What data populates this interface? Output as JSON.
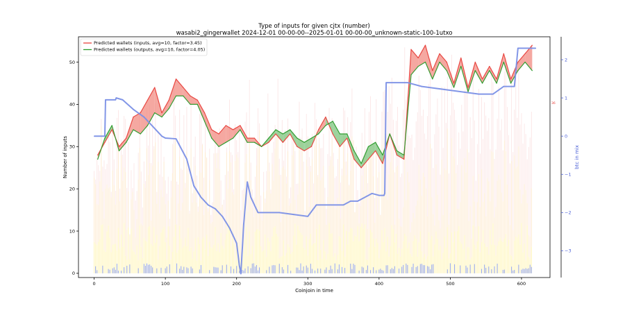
{
  "chart_data": {
    "type": "line",
    "title": "Type of inputs for given cjtx (number)",
    "subtitle": "wasabi2_gingerwallet 2024-12-01 00-00-00--2025-01-01 00-00-00_unknown-static-100-1utxo",
    "xlabel": "Coinjoin in time",
    "ylabel": "Number of inputs",
    "y2label": "btc in mix",
    "xlim": [
      -22,
      640
    ],
    "ylim": [
      -1,
      56
    ],
    "y2lim": [
      -3.7,
      2.6
    ],
    "xticks": [
      "0",
      "100",
      "200",
      "300",
      "400",
      "500",
      "600"
    ],
    "yticks": [
      "0",
      "10",
      "20",
      "30",
      "40",
      "50"
    ],
    "y2ticks": [
      "−3",
      "−2",
      "−1",
      "0",
      "1",
      "2"
    ],
    "legend": {
      "placement": "top-left",
      "entries": [
        {
          "label": "Predicted wallets (inputs, avg=10, factor=3.45)",
          "color": "#e8413c"
        },
        {
          "label": "Predicted wallets (outputs, avg=10, factor=4.05)",
          "color": "#2a9a2a"
        }
      ]
    },
    "right_axis_marker_label": "36",
    "fill_colors": {
      "inputs_greater": "#f28b82",
      "outputs_greater": "#7cc47c"
    },
    "series": [
      {
        "name": "Predicted wallets (inputs, avg=10, factor=3.45)",
        "color": "#e8413c",
        "axis": "left",
        "x": [
          5,
          15,
          25,
          35,
          45,
          55,
          65,
          75,
          85,
          95,
          105,
          115,
          125,
          135,
          145,
          155,
          165,
          175,
          185,
          195,
          205,
          215,
          225,
          235,
          245,
          255,
          265,
          275,
          285,
          295,
          305,
          315,
          325,
          335,
          345,
          355,
          365,
          375,
          385,
          395,
          405,
          415,
          425,
          435,
          445,
          455,
          465,
          475,
          485,
          495,
          505,
          515,
          525,
          535,
          545,
          555,
          565,
          575,
          585,
          595,
          605,
          615
        ],
        "values": [
          28,
          31,
          34,
          30,
          32,
          37,
          38,
          41,
          44,
          38,
          41,
          46,
          44,
          42,
          41,
          38,
          34,
          33,
          35,
          34,
          35,
          32,
          32,
          30,
          31,
          33,
          31,
          33,
          30,
          29,
          30,
          34,
          37,
          33,
          30,
          32,
          27,
          25,
          27,
          29,
          26,
          33,
          28,
          27,
          53,
          51,
          54,
          48,
          52,
          50,
          45,
          51,
          44,
          50,
          46,
          49,
          46,
          52,
          46,
          50,
          52,
          54
        ]
      },
      {
        "name": "Predicted wallets (outputs, avg=10, factor=4.05)",
        "color": "#2a9a2a",
        "axis": "left",
        "x": [
          5,
          15,
          25,
          35,
          45,
          55,
          65,
          75,
          85,
          95,
          105,
          115,
          125,
          135,
          145,
          155,
          165,
          175,
          185,
          195,
          205,
          215,
          225,
          235,
          245,
          255,
          265,
          275,
          285,
          295,
          305,
          315,
          325,
          335,
          345,
          355,
          365,
          375,
          385,
          395,
          405,
          415,
          425,
          435,
          445,
          455,
          465,
          475,
          485,
          495,
          505,
          515,
          525,
          535,
          545,
          555,
          565,
          575,
          585,
          595,
          605,
          615
        ],
        "values": [
          27,
          32,
          35,
          29,
          31,
          34,
          33,
          35,
          38,
          37,
          39,
          42,
          42,
          40,
          40,
          36,
          32,
          30,
          31,
          32,
          34,
          31,
          31,
          30,
          32,
          34,
          33,
          34,
          32,
          31,
          32,
          33,
          35,
          36,
          33,
          33,
          29,
          26,
          30,
          31,
          28,
          33,
          29,
          28,
          47,
          49,
          50,
          46,
          50,
          48,
          44,
          49,
          43,
          48,
          45,
          48,
          45,
          50,
          45,
          48,
          50,
          48
        ]
      },
      {
        "name": "",
        "color": "#7b90e6",
        "axis": "right",
        "x": [
          0,
          15,
          16,
          30,
          31,
          40,
          55,
          70,
          80,
          90,
          95,
          100,
          115,
          130,
          140,
          150,
          160,
          170,
          180,
          190,
          200,
          204,
          206,
          210,
          215,
          220,
          230,
          260,
          280,
          300,
          312,
          350,
          360,
          370,
          390,
          400,
          407,
          408,
          410,
          440,
          460,
          480,
          500,
          520,
          540,
          560,
          575,
          590,
          595,
          620
        ],
        "values": [
          0,
          0,
          0.95,
          0.95,
          1.0,
          0.95,
          0.7,
          0.5,
          0.3,
          0.1,
          0,
          -0.05,
          -0.07,
          -0.6,
          -1.3,
          -1.6,
          -1.8,
          -1.9,
          -2.1,
          -2.4,
          -2.8,
          -3.4,
          -3.6,
          -2.3,
          -1.2,
          -1.6,
          -2.0,
          -2.0,
          -2.05,
          -2.1,
          -1.8,
          -1.8,
          -1.7,
          -1.7,
          -1.5,
          -1.55,
          -1.55,
          -1.5,
          1.4,
          1.4,
          1.3,
          1.25,
          1.2,
          1.15,
          1.1,
          1.1,
          1.3,
          1.3,
          2.3,
          2.3
        ]
      }
    ]
  }
}
